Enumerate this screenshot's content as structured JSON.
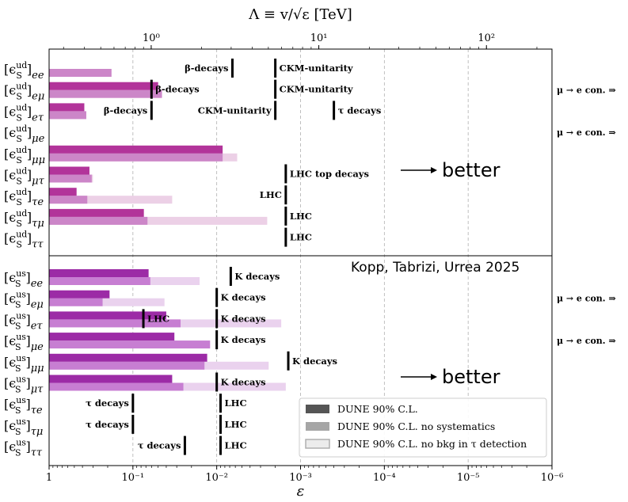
{
  "chart_data": {
    "type": "bar",
    "orientation": "horizontal",
    "x_scale": "log",
    "x_reversed": true,
    "xlim": [
      1,
      1e-06
    ],
    "xlabel": "ε",
    "x_ticks": [
      {
        "v": 1,
        "l": "1"
      },
      {
        "v": 0.1,
        "l": "10⁻¹"
      },
      {
        "v": 0.01,
        "l": "10⁻²"
      },
      {
        "v": 0.001,
        "l": "10⁻³"
      },
      {
        "v": 0.0001,
        "l": "10⁻⁴"
      },
      {
        "v": 1e-05,
        "l": "10⁻⁵"
      },
      {
        "v": 1e-06,
        "l": "10⁻⁶"
      }
    ],
    "top_axis_label": "Λ ≡ v/√ε [TeV]",
    "top_ticks": [
      {
        "v": 1,
        "l": "10⁰"
      },
      {
        "v": 10,
        "l": "10¹"
      },
      {
        "v": 100,
        "l": "10²"
      }
    ],
    "grid": "vertical dashed at decades",
    "legend_position": "bottom-right",
    "legend": [
      {
        "label": "DUNE 90% C.L.",
        "color": "#555555"
      },
      {
        "label": "DUNE 90% C.L. no systematics",
        "color": "#a6a6a6"
      },
      {
        "label": "DUNE 90% C.L. no bkg in τ detection",
        "color": "#ececec"
      }
    ],
    "annotation": "Kopp, Tabrizi, Urrea 2025",
    "better_label": "better",
    "panels": [
      {
        "name": "ud",
        "rows": [
          {
            "sup": "ud",
            "sub": "ee",
            "dune": null,
            "nosys": 0.18,
            "nobkg": null,
            "limits": [
              {
                "v": 0.0065,
                "label": "β-decays",
                "side": "left"
              },
              {
                "v": 0.002,
                "label": "CKM-unitarity",
                "side": "right"
              }
            ]
          },
          {
            "sup": "ud",
            "sub": "eμ",
            "dune": 0.05,
            "nosys": 0.045,
            "nobkg": null,
            "limits": [
              {
                "v": 0.06,
                "label": "β-decays",
                "side": "right"
              },
              {
                "v": 0.002,
                "label": "CKM-unitarity",
                "side": "right"
              }
            ],
            "side_note": "μ → e con. ⇒"
          },
          {
            "sup": "ud",
            "sub": "eτ",
            "dune": 0.38,
            "nosys": 0.36,
            "nobkg": null,
            "limits": [
              {
                "v": 0.06,
                "label": "β-decays",
                "side": "left"
              },
              {
                "v": 0.002,
                "label": "CKM-unitarity",
                "side": "left"
              },
              {
                "v": 0.0004,
                "label": "τ decays",
                "side": "right"
              }
            ]
          },
          {
            "sup": "ud",
            "sub": "μe",
            "dune": null,
            "nosys": null,
            "nobkg": null,
            "limits": [],
            "side_note": "μ → e con. ⇒"
          },
          {
            "sup": "ud",
            "sub": "μμ",
            "dune": 0.0085,
            "nosys": 0.0085,
            "nobkg": 0.0057,
            "limits": []
          },
          {
            "sup": "ud",
            "sub": "μτ",
            "dune": 0.33,
            "nosys": 0.31,
            "nobkg": 0.3,
            "limits": [
              {
                "v": 0.0015,
                "label": "LHC top decays",
                "side": "right"
              }
            ]
          },
          {
            "sup": "ud",
            "sub": "τe",
            "dune": 0.47,
            "nosys": 0.35,
            "nobkg": 0.034,
            "limits": [
              {
                "v": 0.0015,
                "label": "LHC",
                "side": "left"
              }
            ]
          },
          {
            "sup": "ud",
            "sub": "τμ",
            "dune": 0.074,
            "nosys": 0.067,
            "nobkg": 0.0025,
            "limits": [
              {
                "v": 0.0015,
                "label": "LHC",
                "side": "right"
              }
            ]
          },
          {
            "sup": "ud",
            "sub": "ττ",
            "dune": null,
            "nosys": null,
            "nobkg": null,
            "limits": [
              {
                "v": 0.0015,
                "label": "LHC",
                "side": "right"
              }
            ]
          }
        ]
      },
      {
        "name": "us",
        "rows": [
          {
            "sup": "us",
            "sub": "ee",
            "dune": 0.065,
            "nosys": 0.062,
            "nobkg": 0.016,
            "limits": [
              {
                "v": 0.0068,
                "label": "K decays",
                "side": "right"
              }
            ]
          },
          {
            "sup": "us",
            "sub": "eμ",
            "dune": 0.19,
            "nosys": 0.23,
            "nobkg": 0.042,
            "limits": [
              {
                "v": 0.01,
                "label": "K decays",
                "side": "right"
              }
            ],
            "side_note": "μ → e con. ⇒"
          },
          {
            "sup": "us",
            "sub": "eτ",
            "dune": 0.04,
            "nosys": 0.027,
            "nobkg": 0.0017,
            "limits": [
              {
                "v": 0.075,
                "label": "LHC",
                "side": "right"
              },
              {
                "v": 0.01,
                "label": "K decays",
                "side": "right"
              }
            ]
          },
          {
            "sup": "us",
            "sub": "μe",
            "dune": 0.032,
            "nosys": 0.012,
            "nobkg": null,
            "limits": [
              {
                "v": 0.01,
                "label": "K decays",
                "side": "right"
              }
            ],
            "side_note": "μ → e con. ⇒"
          },
          {
            "sup": "us",
            "sub": "μμ",
            "dune": 0.013,
            "nosys": 0.014,
            "nobkg": 0.0024,
            "limits": [
              {
                "v": 0.0014,
                "label": "K decays",
                "side": "right"
              }
            ]
          },
          {
            "sup": "us",
            "sub": "μτ",
            "dune": 0.034,
            "nosys": 0.025,
            "nobkg": 0.0015,
            "limits": [
              {
                "v": 0.01,
                "label": "K decays",
                "side": "right"
              }
            ]
          },
          {
            "sup": "us",
            "sub": "τe",
            "dune": null,
            "nosys": null,
            "nobkg": null,
            "limits": [
              {
                "v": 0.1,
                "label": "τ decays",
                "side": "left"
              },
              {
                "v": 0.009,
                "label": "LHC",
                "side": "right"
              }
            ]
          },
          {
            "sup": "us",
            "sub": "τμ",
            "dune": null,
            "nosys": null,
            "nobkg": null,
            "limits": [
              {
                "v": 0.1,
                "label": "τ decays",
                "side": "left"
              },
              {
                "v": 0.009,
                "label": "LHC",
                "side": "right"
              }
            ]
          },
          {
            "sup": "us",
            "sub": "ττ",
            "dune": null,
            "nosys": null,
            "nobkg": null,
            "limits": [
              {
                "v": 0.024,
                "label": "τ decays",
                "side": "left"
              },
              {
                "v": 0.009,
                "label": "LHC",
                "side": "right"
              }
            ]
          }
        ]
      }
    ],
    "colors": {
      "ud": {
        "dune": "#b2349a",
        "nosys": "#cc86c8",
        "nobkg": "#ecd0e6"
      },
      "us": {
        "dune": "#9c2ba6",
        "nosys": "#c77ed2",
        "nobkg": "#ead2ee"
      }
    }
  }
}
